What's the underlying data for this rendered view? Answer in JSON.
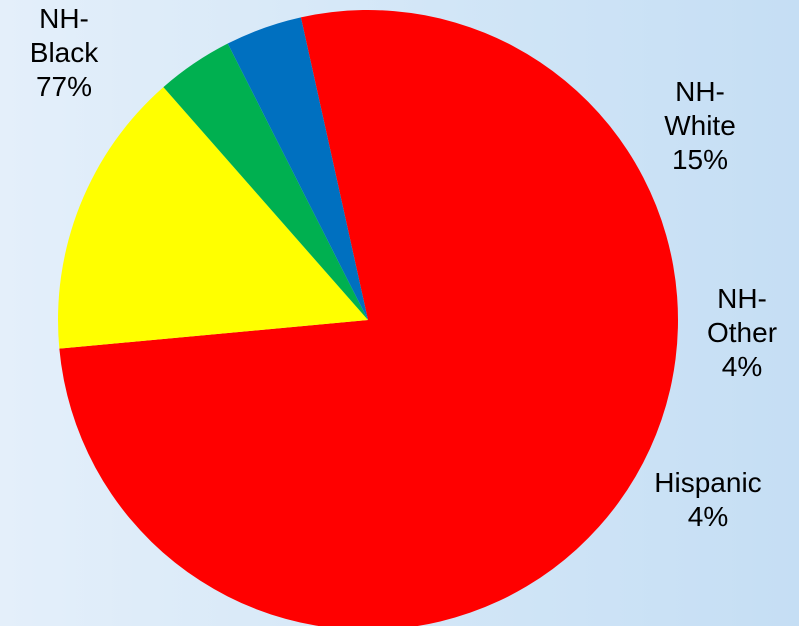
{
  "chart_data": {
    "type": "pie",
    "title": "",
    "slices": [
      {
        "label_lines": [
          "NH-",
          "Black",
          "77%"
        ],
        "value": 77,
        "color": "#ff0000"
      },
      {
        "label_lines": [
          "NH-",
          "White",
          "15%"
        ],
        "value": 15,
        "color": "#ffff00"
      },
      {
        "label_lines": [
          "NH-",
          "Other",
          "4%"
        ],
        "value": 4,
        "color": "#00b050"
      },
      {
        "label_lines": [
          "Hispanic",
          "4%"
        ],
        "value": 4,
        "color": "#0070c0"
      }
    ],
    "legend": "none"
  }
}
